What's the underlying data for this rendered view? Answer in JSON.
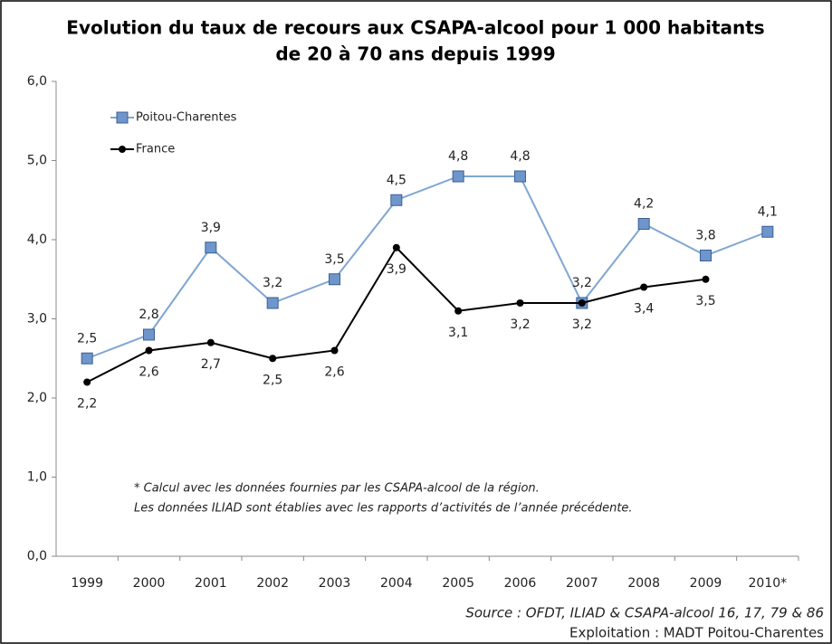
{
  "chart_data": {
    "type": "line",
    "title": [
      "Evolution du taux de recours aux CSAPA-alcool pour 1 000 habitants",
      "de 20 à 70 ans depuis 1999"
    ],
    "categories": [
      "1999",
      "2000",
      "2001",
      "2002",
      "2003",
      "2004",
      "2005",
      "2006",
      "2007",
      "2008",
      "2009",
      "2010*"
    ],
    "series": [
      {
        "name": "Poitou-Charentes",
        "color": "#7fa6d2",
        "marker": "square",
        "values": [
          2.5,
          2.8,
          3.9,
          3.2,
          3.5,
          4.5,
          4.8,
          4.8,
          3.2,
          4.2,
          3.8,
          4.1
        ],
        "value_labels": [
          "2,5",
          "2,8",
          "3,9",
          "3,2",
          "3,5",
          "4,5",
          "4,8",
          "4,8",
          "3,2",
          "4,2",
          "3,8",
          "4,1"
        ]
      },
      {
        "name": "France",
        "color": "#000000",
        "marker": "circle",
        "values": [
          2.2,
          2.6,
          2.7,
          2.5,
          2.6,
          3.9,
          3.1,
          3.2,
          3.2,
          3.4,
          3.5,
          null
        ],
        "value_labels": [
          "2,2",
          "2,6",
          "2,7",
          "2,5",
          "2,6",
          "3,9",
          "3,1",
          "3,2",
          "3,2",
          "3,4",
          "3,5",
          null
        ]
      }
    ],
    "ylim": [
      0,
      6
    ],
    "yticks": [
      {
        "value": 0,
        "label": "0,0"
      },
      {
        "value": 1,
        "label": "1,0"
      },
      {
        "value": 2,
        "label": "2,0"
      },
      {
        "value": 3,
        "label": "3,0"
      },
      {
        "value": 4,
        "label": "4,0"
      },
      {
        "value": 5,
        "label": "5,0"
      },
      {
        "value": 6,
        "label": "6,0"
      }
    ],
    "grid": false,
    "legend": "upper left",
    "notes": [
      "* Calcul avec les données fournies par les CSAPA-alcool de la région.",
      "Les données ILIAD sont établies avec les rapports d’activités de l’année précédente."
    ],
    "source": "Source : OFDT, ILIAD & CSAPA-alcool 16, 17, 79 & 86",
    "credit": "Exploitation : MADT Poitou-Charentes"
  }
}
